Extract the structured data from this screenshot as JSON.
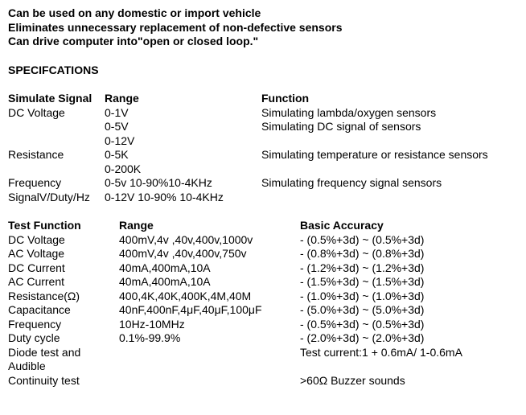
{
  "intro": {
    "l1": "Can be used on any domestic or import vehicle",
    "l2": "Eliminates unnecessary replacement of non-defective sensors",
    "l3": "Can drive computer into\"open or closed loop.\""
  },
  "spec_heading": "SPECIFCATIONS",
  "sig": {
    "h0": "Simulate Signal",
    "h1": "Range",
    "h2": "Function",
    "rows": [
      {
        "c0": "DC Voltage",
        "c1": "0-1V",
        "c2": "Simulating lambda/oxygen sensors"
      },
      {
        "c0": "",
        "c1": "0-5V",
        "c2": "Simulating DC signal of sensors"
      },
      {
        "c0": "",
        "c1": "0-12V",
        "c2": ""
      },
      {
        "c0": "Resistance",
        "c1": "0-5K",
        "c2": "Simulating temperature or resistance sensors"
      },
      {
        "c0": "",
        "c1": "0-200K",
        "c2": ""
      },
      {
        "c0": "Frequency",
        "c1": "0-5v 10-90%10-4KHz",
        "c2": "Simulating frequency signal sensors"
      },
      {
        "c0": "SignalV/Duty/Hz",
        "c1": "0-12V 10-90% 10-4KHz",
        "c2": ""
      }
    ]
  },
  "test": {
    "h0": "Test Function",
    "h1": "Range",
    "h2": "Basic Accuracy",
    "rows": [
      {
        "c0": "DC Voltage",
        "c1": "400mV,4v ,40v,400v,1000v",
        "c2": "- (0.5%+3d) ~ (0.5%+3d)"
      },
      {
        "c0": "AC Voltage",
        "c1": "400mV,4v ,40v,400v,750v",
        "c2": "- (0.8%+3d) ~ (0.8%+3d)"
      },
      {
        "c0": "DC Current",
        "c1": "40mA,400mA,10A",
        "c2": "- (1.2%+3d) ~ (1.2%+3d)"
      },
      {
        "c0": "AC Current",
        "c1": "40mA,400mA,10A",
        "c2": "- (1.5%+3d) ~ (1.5%+3d)"
      },
      {
        "c0": "Resistance(Ω)",
        "c1": "400,4K,40K,400K,4M,40M",
        "c2": "- (1.0%+3d) ~ (1.0%+3d)"
      },
      {
        "c0": "Capacitance",
        "c1": "40nF,400nF,4μF,40μF,100μF",
        "c2": "- (5.0%+3d) ~ (5.0%+3d)"
      },
      {
        "c0": "Frequency",
        "c1": "10Hz-10MHz",
        "c2": "- (0.5%+3d) ~ (0.5%+3d)"
      },
      {
        "c0": "Duty cycle",
        "c1": "0.1%-99.9%",
        "c2": "- (2.0%+3d) ~ (2.0%+3d)"
      },
      {
        "c0": "Diode test and Audible",
        "c1": "",
        "c2": "Test current:1 + 0.6mA/ 1-0.6mA"
      },
      {
        "c0": "Continuity test",
        "c1": "",
        "c2": ">60Ω Buzzer sounds"
      }
    ]
  }
}
